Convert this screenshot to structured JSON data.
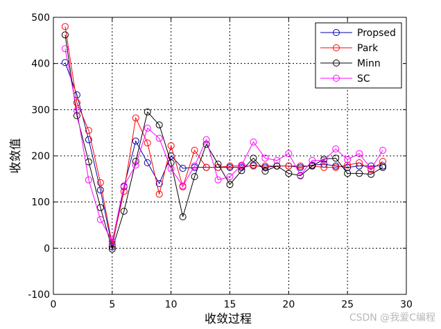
{
  "chart_data": {
    "type": "line",
    "title": "",
    "xlabel": "收敛过程",
    "ylabel": "收敛值",
    "xlim": [
      0,
      30
    ],
    "ylim": [
      -100,
      500
    ],
    "xticks": [
      0,
      5,
      10,
      15,
      20,
      25,
      30
    ],
    "yticks": [
      -100,
      0,
      100,
      200,
      300,
      400,
      500
    ],
    "grid": true,
    "legend_position": "top-right",
    "x": [
      1,
      2,
      3,
      4,
      5,
      6,
      7,
      8,
      9,
      10,
      11,
      12,
      13,
      14,
      15,
      16,
      17,
      18,
      19,
      20,
      21,
      22,
      23,
      24,
      25,
      26,
      27,
      28
    ],
    "series": [
      {
        "name": "Propsed",
        "color": "#0000aa",
        "marker": "circle",
        "values": [
          402,
          332,
          235,
          126,
          3,
          133,
          232,
          185,
          140,
          200,
          173,
          175,
          175,
          175,
          175,
          175,
          180,
          175,
          178,
          178,
          175,
          180,
          182,
          178,
          175,
          178,
          178,
          178
        ]
      },
      {
        "name": "Park",
        "color": "#ff0000",
        "marker": "circle",
        "values": [
          480,
          315,
          255,
          142,
          8,
          123,
          282,
          228,
          117,
          222,
          133,
          212,
          175,
          175,
          178,
          178,
          178,
          178,
          178,
          178,
          178,
          178,
          175,
          175,
          180,
          185,
          170,
          188
        ]
      },
      {
        "name": "Minn",
        "color": "#000000",
        "marker": "circle",
        "values": [
          462,
          287,
          187,
          88,
          -2,
          80,
          188,
          295,
          267,
          185,
          68,
          155,
          225,
          182,
          138,
          168,
          195,
          167,
          178,
          162,
          157,
          178,
          193,
          195,
          162,
          162,
          160,
          175
        ]
      },
      {
        "name": "SC",
        "color": "#ff00ff",
        "marker": "circle",
        "values": [
          432,
          298,
          148,
          62,
          15,
          135,
          180,
          260,
          238,
          172,
          135,
          178,
          235,
          148,
          155,
          180,
          230,
          195,
          190,
          205,
          158,
          190,
          190,
          215,
          192,
          205,
          172,
          212
        ]
      }
    ]
  },
  "watermark": "CSDN @我爱C编程"
}
